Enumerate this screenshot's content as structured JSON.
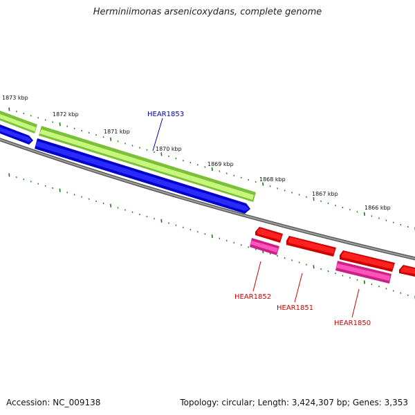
{
  "title": "Herminiimonas arsenicoxydans, complete genome",
  "footer": {
    "accession": "Accession: NC_009138",
    "topology": "Topology: circular; Length: 3,424,307 bp; Genes: 3,353"
  },
  "kbp_labels": [
    "1873 kbp",
    "1872 kbp",
    "1871 kbp",
    "1870 kbp",
    "1869 kbp",
    "1868 kbp",
    "1867 kbp",
    "1866 kbp"
  ],
  "gene_labels": {
    "hear1853": "HEAR1853",
    "hear1852": "HEAR1852",
    "hear1851": "HEAR1851",
    "hear1850": "HEAR1850"
  },
  "colors": {
    "green": "#b7f35a",
    "blue": "#0000ee",
    "red": "#ee0000",
    "pink": "#ff33aa",
    "backbone": "#808080",
    "tick": "#1a7a1a",
    "label_blue": "#0000aa",
    "label_red": "#cc0000"
  }
}
